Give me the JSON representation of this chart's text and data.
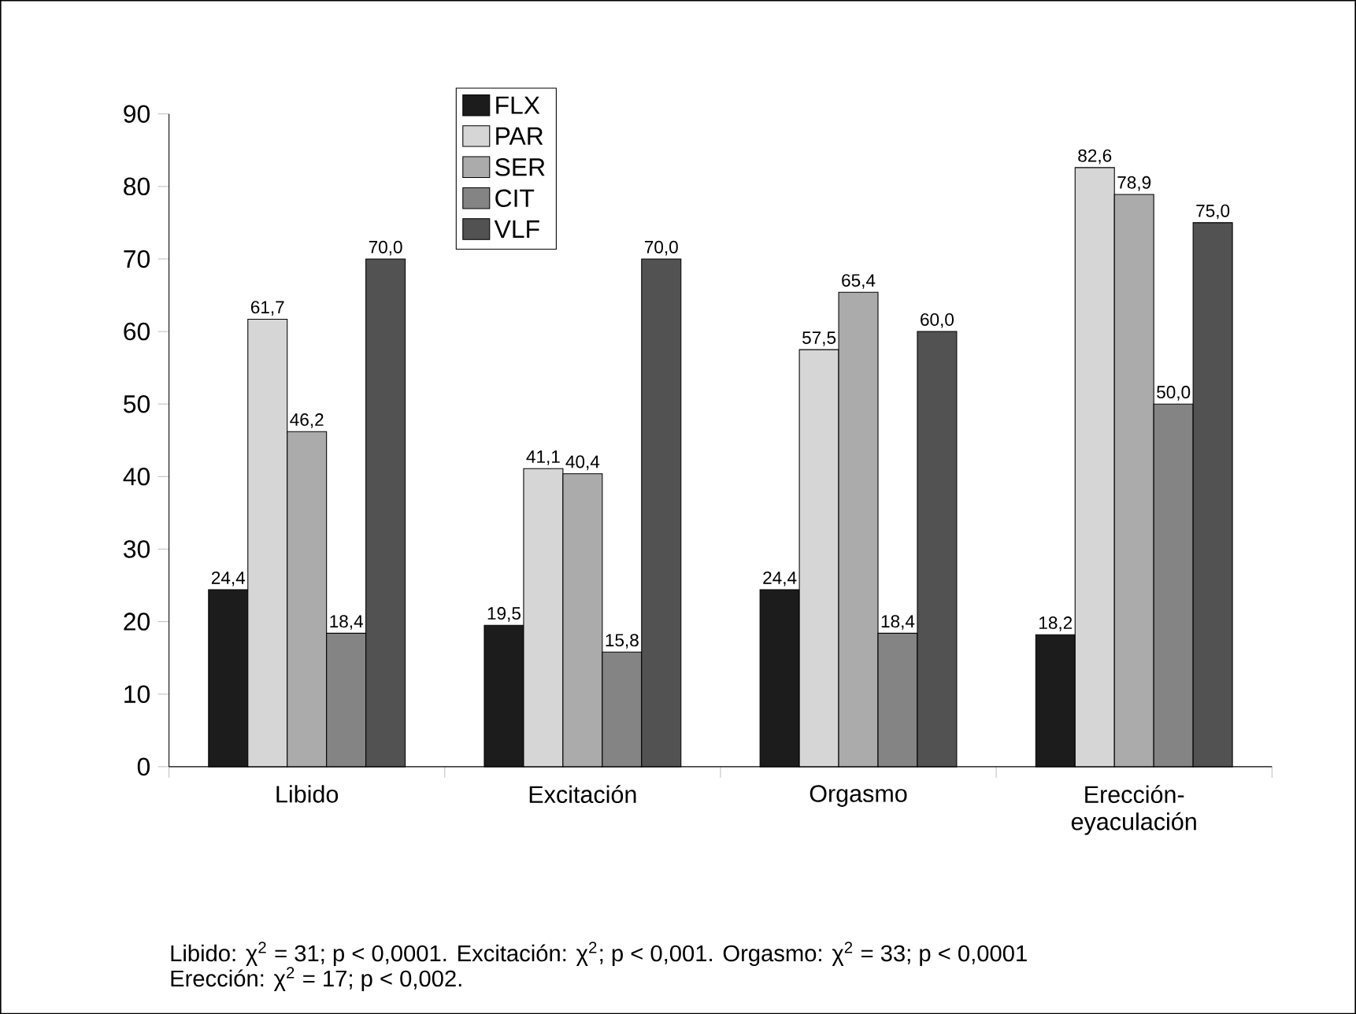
{
  "chart_data": {
    "type": "bar",
    "categories": [
      "Libido",
      "Excitación",
      "Orgasmo",
      "Erección-eyaculación"
    ],
    "series": [
      {
        "name": "FLX",
        "color": "#1c1c1c",
        "values": [
          24.4,
          19.5,
          24.4,
          18.2
        ],
        "value_labels": [
          "24,4",
          "19,5",
          "24,4",
          "18,2"
        ]
      },
      {
        "name": "PAR",
        "color": "#d6d6d6",
        "values": [
          61.7,
          41.1,
          57.5,
          82.6
        ],
        "value_labels": [
          "61,7",
          "41,1",
          "57,5",
          "82,6"
        ]
      },
      {
        "name": "SER",
        "color": "#ababab",
        "values": [
          46.2,
          40.4,
          65.4,
          78.9
        ],
        "value_labels": [
          "46,2",
          "40,4",
          "65,4",
          "78,9"
        ]
      },
      {
        "name": "CIT",
        "color": "#848484",
        "values": [
          18.4,
          15.8,
          18.4,
          50.0
        ],
        "value_labels": [
          "18,4",
          "15,8",
          "18,4",
          "50,0"
        ]
      },
      {
        "name": "VLF",
        "color": "#525252",
        "values": [
          70.0,
          70.0,
          60.0,
          75.0
        ],
        "value_labels": [
          "70,0",
          "70,0",
          "60,0",
          "75,0"
        ]
      }
    ],
    "ylim": [
      0,
      90
    ],
    "yticks": [
      0,
      10,
      20,
      30,
      40,
      50,
      60,
      70,
      80,
      90
    ],
    "legend": "top left",
    "grid": false,
    "annotations": [
      "Libido: χ$^{2}$ = 31; p < 0,0001. Excitación: χ$^{2}$; p < 0,001. Orgasmo: χ$^{2}$ = 33; p < 0,0001",
      "Erección: χ$^{2}$ = 17; p < 0,002."
    ]
  }
}
